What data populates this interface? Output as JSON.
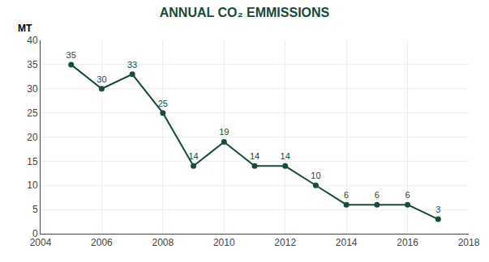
{
  "chart_data": {
    "type": "line",
    "title": "ANNUAL CO₂ EMMISSIONS",
    "ylabel": "MT",
    "x": [
      2005,
      2006,
      2007,
      2008,
      2009,
      2010,
      2011,
      2012,
      2013,
      2014,
      2015,
      2016,
      2017
    ],
    "values": [
      35,
      30,
      33,
      25,
      14,
      19,
      14,
      14,
      10,
      6,
      6,
      6,
      3
    ],
    "color": "#1a4a3a",
    "marker": "circle",
    "xlim": [
      2004,
      2018
    ],
    "xticks": [
      2004,
      2006,
      2008,
      2010,
      2012,
      2014,
      2016,
      2018
    ],
    "ylim": [
      0,
      40
    ],
    "yticks": [
      0,
      5,
      10,
      15,
      20,
      25,
      30,
      35,
      40
    ],
    "grid": true,
    "data_labels": true
  }
}
